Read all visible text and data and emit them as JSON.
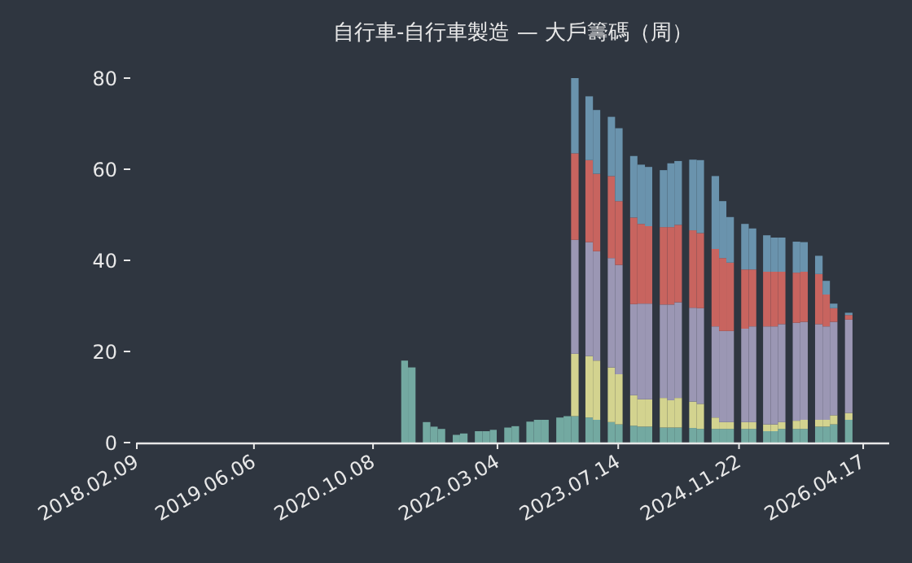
{
  "chart_data": {
    "type": "bar",
    "stacked": true,
    "title": "自行車-自行車製造 — 大戶籌碼（周）",
    "x": [
      "2021-02",
      "2021-03",
      "2021-04",
      "2021-05",
      "2021-06",
      "2021-07",
      "2021-08",
      "2021-09",
      "2021-10",
      "2021-11",
      "2021-12",
      "2022-01",
      "2022-02",
      "2022-03",
      "2022-04",
      "2022-05",
      "2022-06",
      "2022-07",
      "2022-08",
      "2022-09",
      "2022-10",
      "2022-11",
      "2022-12",
      "2023-01",
      "2023-02",
      "2023-03",
      "2023-04",
      "2023-05",
      "2023-06",
      "2023-07",
      "2023-08",
      "2023-09",
      "2023-10",
      "2023-11",
      "2023-12",
      "2024-01",
      "2024-02",
      "2024-03",
      "2024-04",
      "2024-05",
      "2024-06",
      "2024-07",
      "2024-08",
      "2024-09",
      "2024-10",
      "2024-11",
      "2024-12",
      "2025-01",
      "2025-02",
      "2025-03",
      "2025-04",
      "2025-05",
      "2025-06",
      "2025-07",
      "2025-08",
      "2025-09",
      "2025-10",
      "2025-11",
      "2025-12",
      "2026-01",
      "2026-02"
    ],
    "series": [
      {
        "color": "#73a9a1",
        "values": [
          18,
          16.5,
          null,
          4.5,
          3.5,
          3,
          null,
          1.7,
          2,
          null,
          2.5,
          2.5,
          2.8,
          null,
          3.3,
          3.6,
          null,
          4.6,
          5,
          5,
          null,
          5.5,
          5.8,
          5.8,
          null,
          5.5,
          5,
          null,
          4.5,
          4,
          null,
          3.7,
          3.5,
          3.5,
          null,
          3.3,
          3.3,
          3.3,
          null,
          3.2,
          3,
          null,
          3,
          3,
          3,
          null,
          3,
          3,
          null,
          2.5,
          2.5,
          3,
          null,
          3,
          3,
          null,
          3.5,
          3.5,
          4,
          null,
          5
        ]
      },
      {
        "color": "#d3d38f",
        "values": [
          null,
          null,
          null,
          null,
          null,
          null,
          null,
          null,
          null,
          null,
          null,
          null,
          null,
          null,
          null,
          null,
          null,
          null,
          null,
          null,
          null,
          null,
          null,
          13.7,
          null,
          13.5,
          13,
          null,
          12,
          11,
          null,
          6.7,
          6,
          6,
          null,
          6.5,
          6,
          6.5,
          null,
          5.8,
          5.5,
          null,
          2.5,
          1.5,
          1.5,
          null,
          1.5,
          1.5,
          null,
          1.5,
          1.5,
          1.5,
          null,
          1.8,
          2,
          null,
          1.5,
          1.5,
          2,
          null,
          1.5
        ]
      },
      {
        "color": "#9b97b4",
        "values": [
          null,
          null,
          null,
          null,
          null,
          null,
          null,
          null,
          null,
          null,
          null,
          null,
          null,
          null,
          null,
          null,
          null,
          null,
          null,
          null,
          null,
          null,
          null,
          25,
          null,
          25,
          24,
          null,
          24,
          24,
          null,
          20,
          21,
          21,
          null,
          20.5,
          21,
          21,
          null,
          20.6,
          21,
          null,
          20,
          20,
          20,
          null,
          20.5,
          21,
          null,
          21.5,
          21.5,
          21.5,
          null,
          21.5,
          21.5,
          null,
          21,
          20.5,
          20.5,
          null,
          20.5
        ]
      },
      {
        "color": "#c8645f",
        "values": [
          null,
          null,
          null,
          null,
          null,
          null,
          null,
          null,
          null,
          null,
          null,
          null,
          null,
          null,
          null,
          null,
          null,
          null,
          null,
          null,
          null,
          null,
          null,
          19,
          null,
          18,
          17,
          null,
          18,
          14,
          null,
          19,
          17.5,
          17,
          null,
          17,
          17,
          17,
          null,
          17,
          16.5,
          null,
          17,
          16,
          15,
          null,
          13,
          12.5,
          null,
          12,
          12,
          11.5,
          null,
          11,
          11,
          null,
          11,
          7,
          3,
          null,
          1
        ]
      },
      {
        "color": "#6a93ad",
        "values": [
          null,
          null,
          null,
          null,
          null,
          null,
          null,
          null,
          null,
          null,
          null,
          null,
          null,
          null,
          null,
          null,
          null,
          null,
          null,
          null,
          null,
          null,
          null,
          16.5,
          null,
          14,
          14,
          null,
          13,
          16,
          null,
          13.5,
          13,
          13,
          null,
          12.5,
          14,
          14,
          null,
          15.5,
          16,
          null,
          16,
          12.5,
          10,
          null,
          10,
          9,
          null,
          8,
          7.5,
          7.5,
          null,
          6.8,
          6.5,
          null,
          4,
          3,
          1,
          null,
          0.5
        ]
      }
    ],
    "xlim": [
      "2018-02-09",
      "2026-08-02"
    ],
    "xticks": [
      {
        "value": "2018-02-09",
        "label": "2018.02.09"
      },
      {
        "value": "2019-06-06",
        "label": "2019.06.06"
      },
      {
        "value": "2020-10-08",
        "label": "2020.10.08"
      },
      {
        "value": "2022-03-04",
        "label": "2022.03.04"
      },
      {
        "value": "2023-07-14",
        "label": "2023.07.14"
      },
      {
        "value": "2024-11-22",
        "label": "2024.11.22"
      },
      {
        "value": "2026-04-17",
        "label": "2026.04.17"
      }
    ],
    "ylim": [
      0,
      80
    ],
    "yticks": [
      0,
      20,
      40,
      60,
      80
    ]
  }
}
